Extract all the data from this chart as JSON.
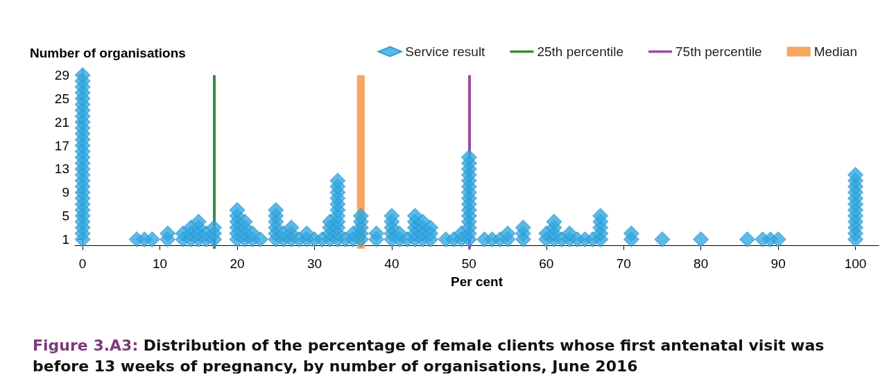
{
  "chart_data": {
    "type": "scatter",
    "title": "Figure 3.A3: Distribution of the percentage of female clients whose first antenatal visit was before 13 weeks of pregnancy, by number of organisations, June 2016",
    "ylabel": "Number of organisations",
    "xlabel": "Per cent",
    "marker": "diamond",
    "legend": "top right",
    "grid": false,
    "xlim": [
      -1,
      103
    ],
    "xticks": [
      0,
      10,
      20,
      30,
      40,
      50,
      60,
      70,
      80,
      90,
      100
    ],
    "ylim": [
      -0.6,
      30
    ],
    "yticks": [
      1,
      5,
      9,
      13,
      17,
      21,
      25,
      29
    ],
    "series": [
      {
        "name": "Service result",
        "color": "#35a8e0",
        "x": [
          0,
          0,
          0,
          0,
          0,
          0,
          0,
          0,
          0,
          0,
          0,
          0,
          0,
          0,
          0,
          0,
          0,
          0,
          0,
          0,
          0,
          0,
          0,
          0,
          0,
          0,
          0,
          0,
          0,
          7,
          8,
          9,
          11,
          11,
          13,
          13,
          14,
          14,
          14,
          15,
          15,
          15,
          15,
          16,
          16,
          17,
          17,
          17,
          20,
          20,
          20,
          20,
          20,
          20,
          21,
          21,
          21,
          21,
          22,
          22,
          23,
          25,
          25,
          25,
          25,
          25,
          25,
          26,
          26,
          27,
          27,
          27,
          28,
          29,
          29,
          30,
          31,
          32,
          32,
          32,
          32,
          33,
          33,
          33,
          33,
          33,
          33,
          33,
          33,
          33,
          33,
          33,
          34,
          35,
          35,
          36,
          36,
          36,
          36,
          36,
          38,
          38,
          40,
          40,
          40,
          40,
          40,
          41,
          41,
          42,
          43,
          43,
          43,
          43,
          43,
          44,
          44,
          44,
          44,
          45,
          45,
          45,
          47,
          48,
          49,
          49,
          50,
          50,
          50,
          50,
          50,
          50,
          50,
          50,
          50,
          50,
          50,
          50,
          50,
          50,
          50,
          52,
          53,
          54,
          55,
          55,
          57,
          57,
          57,
          60,
          60,
          61,
          61,
          61,
          61,
          62,
          63,
          63,
          64,
          65,
          66,
          67,
          67,
          67,
          67,
          67,
          71,
          71,
          75,
          80,
          86,
          88,
          89,
          90,
          100,
          100,
          100,
          100,
          100,
          100,
          100,
          100,
          100,
          100,
          100,
          100
        ],
        "values": [
          1,
          2,
          3,
          4,
          5,
          6,
          7,
          8,
          9,
          10,
          11,
          12,
          13,
          14,
          15,
          16,
          17,
          18,
          19,
          20,
          21,
          22,
          23,
          24,
          25,
          26,
          27,
          28,
          29,
          1,
          1,
          1,
          1,
          2,
          1,
          2,
          1,
          2,
          3,
          1,
          2,
          3,
          4,
          1,
          2,
          1,
          2,
          3,
          1,
          2,
          3,
          4,
          5,
          6,
          1,
          2,
          3,
          4,
          1,
          2,
          1,
          1,
          2,
          3,
          4,
          5,
          6,
          1,
          2,
          1,
          2,
          3,
          1,
          1,
          2,
          1,
          1,
          1,
          2,
          3,
          4,
          1,
          2,
          3,
          4,
          5,
          6,
          7,
          8,
          9,
          10,
          11,
          1,
          1,
          2,
          1,
          2,
          3,
          4,
          5,
          1,
          2,
          1,
          2,
          3,
          4,
          5,
          1,
          2,
          1,
          1,
          2,
          3,
          4,
          5,
          1,
          2,
          3,
          4,
          1,
          2,
          3,
          1,
          1,
          1,
          2,
          1,
          2,
          3,
          4,
          5,
          6,
          7,
          8,
          9,
          10,
          11,
          12,
          13,
          14,
          15,
          1,
          1,
          1,
          1,
          2,
          1,
          2,
          3,
          1,
          2,
          1,
          2,
          3,
          4,
          1,
          1,
          2,
          1,
          1,
          1,
          1,
          2,
          3,
          4,
          5,
          1,
          2,
          1,
          1,
          1,
          1,
          1,
          1,
          1,
          2,
          3,
          4,
          5,
          6,
          7,
          8,
          9,
          10,
          11,
          12
        ]
      }
    ],
    "ref_lines": [
      {
        "axis": "x",
        "value": 17,
        "label": "25th percentile",
        "color": "#3f8a3a"
      },
      {
        "axis": "x",
        "value": 50,
        "label": "75th percentile",
        "color": "#9b4a9b"
      }
    ],
    "bands": [
      {
        "axis": "x",
        "from": 35.5,
        "to": 36.5,
        "label": "Median",
        "color": "#f7a65f"
      }
    ]
  }
}
